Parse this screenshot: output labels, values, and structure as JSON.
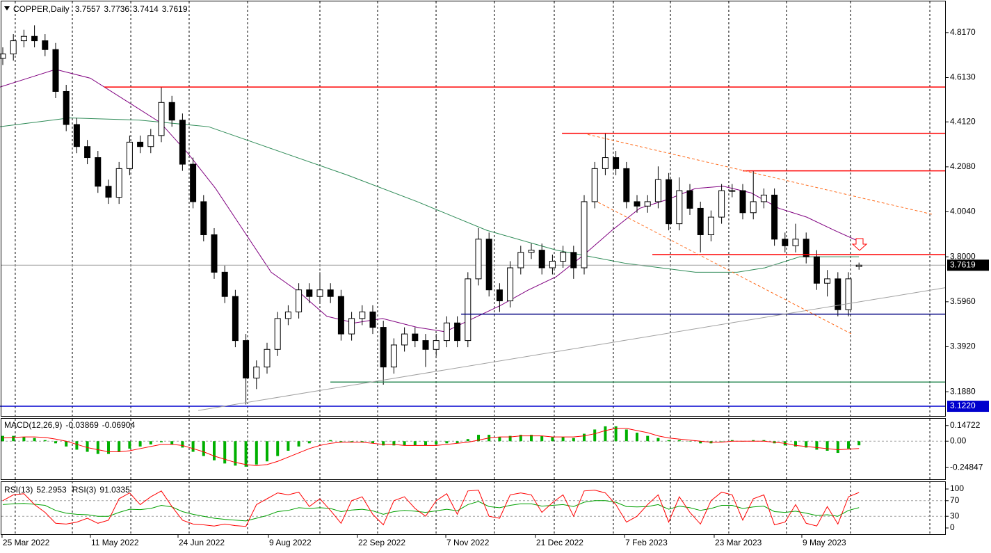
{
  "chart_data": [
    {
      "type": "candlestick",
      "title": "COPPER,Daily",
      "colors": {
        "up": "#ffffff",
        "down": "#000000",
        "outline": "#000000"
      },
      "open": [
        4.7,
        4.72,
        4.78,
        4.8,
        4.78,
        4.74,
        4.55,
        4.4,
        4.3,
        4.25,
        4.12,
        4.07,
        4.2,
        4.32,
        4.3,
        4.35,
        4.5,
        4.42,
        4.22,
        4.05,
        3.9,
        3.73,
        3.62,
        3.42,
        3.25,
        3.3,
        3.38,
        3.52,
        3.55,
        3.65,
        3.62,
        3.65,
        3.62,
        3.45,
        3.52,
        3.55,
        3.48,
        3.3,
        3.4,
        3.45,
        3.42,
        3.38,
        3.42,
        3.5,
        3.42,
        3.7,
        3.88,
        3.65,
        3.6,
        3.75,
        3.82,
        3.83,
        3.75,
        3.78,
        3.82,
        3.75,
        4.05,
        4.2,
        4.25,
        4.2,
        4.05,
        4.03,
        4.05,
        4.15,
        3.95,
        4.1,
        4.02,
        3.9,
        3.98,
        4.1,
        4.1,
        4.0,
        4.05,
        4.08,
        3.88,
        3.85,
        3.88,
        3.8,
        3.68,
        3.7,
        3.56,
        3.7557
      ],
      "high": [
        4.75,
        4.81,
        4.83,
        4.85,
        4.81,
        4.77,
        4.58,
        4.43,
        4.33,
        4.28,
        4.15,
        4.23,
        4.35,
        4.35,
        4.38,
        4.57,
        4.53,
        4.45,
        4.25,
        4.08,
        3.93,
        3.76,
        3.65,
        3.45,
        3.33,
        3.41,
        3.55,
        3.58,
        3.68,
        3.68,
        3.73,
        3.68,
        3.65,
        3.55,
        3.58,
        3.58,
        3.51,
        3.43,
        3.48,
        3.48,
        3.45,
        3.45,
        3.53,
        3.53,
        3.73,
        3.93,
        3.91,
        3.68,
        3.78,
        3.85,
        3.86,
        3.86,
        3.81,
        3.85,
        3.85,
        4.08,
        4.23,
        4.36,
        4.28,
        4.23,
        4.08,
        4.08,
        4.21,
        4.18,
        4.16,
        4.13,
        4.05,
        4.01,
        4.13,
        4.13,
        4.13,
        4.19,
        4.11,
        4.11,
        3.91,
        3.95,
        3.91,
        3.83,
        3.74,
        3.73,
        3.73,
        3.7736
      ],
      "low": [
        4.67,
        4.69,
        4.75,
        4.75,
        4.71,
        4.52,
        4.37,
        4.27,
        4.22,
        4.09,
        4.04,
        4.04,
        4.17,
        4.27,
        4.27,
        4.32,
        4.39,
        4.19,
        4.02,
        3.87,
        3.7,
        3.59,
        3.39,
        3.13,
        3.2,
        3.27,
        3.35,
        3.49,
        3.52,
        3.59,
        3.59,
        3.59,
        3.42,
        3.42,
        3.49,
        3.45,
        3.22,
        3.27,
        3.37,
        3.39,
        3.3,
        3.35,
        3.39,
        3.39,
        3.39,
        3.67,
        3.62,
        3.55,
        3.57,
        3.72,
        3.79,
        3.72,
        3.72,
        3.75,
        3.7,
        3.72,
        4.02,
        4.17,
        4.17,
        4.02,
        4.0,
        4.0,
        4.02,
        3.92,
        3.92,
        3.99,
        3.82,
        3.87,
        3.95,
        4.07,
        3.97,
        3.97,
        4.02,
        3.85,
        3.82,
        3.82,
        3.77,
        3.65,
        3.62,
        3.53,
        3.53,
        3.7414
      ],
      "close": [
        4.72,
        4.78,
        4.8,
        4.78,
        4.74,
        4.55,
        4.4,
        4.3,
        4.25,
        4.12,
        4.07,
        4.2,
        4.32,
        4.3,
        4.35,
        4.5,
        4.42,
        4.22,
        4.05,
        3.9,
        3.73,
        3.62,
        3.42,
        3.25,
        3.3,
        3.38,
        3.52,
        3.55,
        3.65,
        3.62,
        3.65,
        3.62,
        3.45,
        3.52,
        3.55,
        3.48,
        3.3,
        3.4,
        3.45,
        3.42,
        3.38,
        3.42,
        3.5,
        3.42,
        3.7,
        3.88,
        3.65,
        3.6,
        3.75,
        3.82,
        3.83,
        3.75,
        3.78,
        3.82,
        3.75,
        4.05,
        4.2,
        4.25,
        4.2,
        4.05,
        4.03,
        4.05,
        4.15,
        3.95,
        4.1,
        4.02,
        3.9,
        3.98,
        4.1,
        4.1,
        4.0,
        4.05,
        4.08,
        3.88,
        3.85,
        3.88,
        3.8,
        3.68,
        3.7,
        3.56,
        3.7,
        3.7619
      ],
      "xlim": [
        -0.263,
        89.21
      ],
      "xticks": [
        {
          "value": -0.07,
          "label": "25 Mar 2022"
        },
        {
          "value": 8.29,
          "label": "11 May 2022"
        },
        {
          "value": 16.58,
          "label": "24 Jun 2022"
        },
        {
          "value": 25.13,
          "label": "9 Aug 2022"
        },
        {
          "value": 33.55,
          "label": "22 Sep 2022"
        },
        {
          "value": 41.91,
          "label": "7 Nov 2022"
        },
        {
          "value": 50.39,
          "label": "21 Dec 2022"
        },
        {
          "value": 58.82,
          "label": "7 Feb 2023"
        },
        {
          "value": 67.3,
          "label": "23 Mar 2023"
        },
        {
          "value": 75.59,
          "label": "9 May 2023"
        }
      ],
      "xgrid": [
        1.18,
        6.58,
        12.11,
        17.63,
        23.16,
        30.0,
        35.46,
        40.99,
        46.51,
        52.17,
        57.76,
        63.16,
        68.68,
        74.14,
        80.2,
        87.7
      ],
      "ylim": [
        3.078,
        4.9585
      ],
      "yticks": [
        {
          "value": 4.817,
          "label": "4.8170"
        },
        {
          "value": 4.613,
          "label": "4.6130"
        },
        {
          "value": 4.412,
          "label": "4.4120"
        },
        {
          "value": 4.208,
          "label": "4.2080"
        },
        {
          "value": 4.004,
          "label": "4.0040"
        },
        {
          "value": 3.8,
          "label": "3.8000"
        },
        {
          "value": 3.596,
          "label": "3.5960"
        },
        {
          "value": 3.392,
          "label": "3.3920"
        },
        {
          "value": 3.188,
          "label": "3.1880"
        }
      ],
      "moving_averages": [
        {
          "color": "#800080",
          "x": [
            -0.26,
            2.37,
            5.0,
            8.29,
            12.24,
            14.87,
            17.5,
            20.13,
            22.76,
            25.39,
            28.03,
            30.66,
            33.29,
            35.92,
            39.21,
            41.84,
            44.47,
            47.11,
            49.74,
            52.37,
            55.0,
            57.63,
            60.26,
            62.9,
            65.53,
            68.16,
            70.79,
            73.42,
            76.05,
            78.68,
            80.99
          ],
          "values": [
            4.57,
            4.61,
            4.65,
            4.61,
            4.49,
            4.41,
            4.27,
            4.11,
            3.92,
            3.73,
            3.64,
            3.53,
            3.5,
            3.52,
            3.48,
            3.46,
            3.52,
            3.58,
            3.65,
            3.71,
            3.81,
            3.92,
            4.02,
            4.06,
            4.11,
            4.12,
            4.09,
            4.02,
            3.98,
            3.92,
            3.87
          ]
        },
        {
          "color": "#2e8b57",
          "x": [
            -0.26,
            6.32,
            12.89,
            19.47,
            26.05,
            32.63,
            39.21,
            45.79,
            52.37,
            58.95,
            65.53,
            69.47,
            72.1,
            75.39,
            80.99
          ],
          "values": [
            4.39,
            4.43,
            4.42,
            4.39,
            4.28,
            4.17,
            4.05,
            3.92,
            3.83,
            3.77,
            3.73,
            3.73,
            3.75,
            3.8,
            3.8
          ]
        }
      ],
      "levels": [
        {
          "value": 4.57,
          "x0": 9.6,
          "color": "#ff0000"
        },
        {
          "value": 4.36,
          "x0": 52.9,
          "color": "#ff0000"
        },
        {
          "value": 4.19,
          "x0": 70.0,
          "color": "#ff0000"
        },
        {
          "value": 3.81,
          "x0": 61.45,
          "color": "#ff0000"
        },
        {
          "value": 3.54,
          "x0": 43.36,
          "color": "#000080"
        },
        {
          "value": 3.232,
          "x0": 30.99,
          "color": "#2e8b57"
        },
        {
          "value": 3.122,
          "label": "3.1220",
          "x0": -0.263,
          "color": "#0000cd"
        }
      ],
      "trendlines": [
        {
          "x": [
            18.49,
            89.21
          ],
          "values": [
            3.103,
            3.66
          ],
          "color": "#a0a0a0",
          "dashed": false
        },
        {
          "x": [
            55.33,
            87.9
          ],
          "values": [
            4.355,
            3.993
          ],
          "color": "#ff6a1a",
          "dashed": true
        },
        {
          "x": [
            56.32,
            80.33
          ],
          "values": [
            4.047,
            3.449
          ],
          "color": "#ff6a1a",
          "dashed": true
        }
      ]
    },
    {
      "type": "macd",
      "title": "MACD(12,26,9)",
      "series": [
        {
          "color": "#00b000",
          "style": "histogram",
          "values": [
            0.05,
            0.05,
            0.04,
            0.03,
            0.01,
            -0.02,
            -0.05,
            -0.08,
            -0.1,
            -0.12,
            -0.12,
            -0.1,
            -0.07,
            -0.05,
            -0.03,
            -0.01,
            -0.03,
            -0.06,
            -0.1,
            -0.14,
            -0.18,
            -0.21,
            -0.23,
            -0.24,
            -0.22,
            -0.19,
            -0.14,
            -0.09,
            -0.05,
            -0.02,
            0.0,
            0.01,
            -0.01,
            -0.01,
            -0.01,
            -0.02,
            -0.04,
            -0.04,
            -0.04,
            -0.04,
            -0.04,
            -0.03,
            -0.02,
            -0.02,
            0.02,
            0.06,
            0.06,
            0.04,
            0.05,
            0.06,
            0.06,
            0.05,
            0.04,
            0.04,
            0.03,
            0.07,
            0.11,
            0.14,
            0.14,
            0.11,
            0.08,
            0.05,
            0.03,
            0.01,
            0.01,
            0.0,
            -0.02,
            -0.02,
            0.0,
            0.01,
            0.0,
            0.01,
            0.01,
            -0.02,
            -0.04,
            -0.05,
            -0.06,
            -0.08,
            -0.09,
            -0.11,
            -0.07,
            -0.03869
          ]
        },
        {
          "color": "#ff0000",
          "style": "line",
          "values": [
            0.03,
            0.035,
            0.04,
            0.04,
            0.035,
            0.02,
            0.0,
            -0.03,
            -0.06,
            -0.08,
            -0.1,
            -0.1,
            -0.09,
            -0.07,
            -0.05,
            -0.03,
            -0.03,
            -0.04,
            -0.07,
            -0.1,
            -0.14,
            -0.17,
            -0.2,
            -0.22,
            -0.23,
            -0.22,
            -0.19,
            -0.15,
            -0.11,
            -0.07,
            -0.04,
            -0.02,
            -0.01,
            -0.01,
            -0.01,
            -0.02,
            -0.03,
            -0.03,
            -0.04,
            -0.04,
            -0.04,
            -0.04,
            -0.03,
            -0.02,
            -0.01,
            0.01,
            0.03,
            0.04,
            0.04,
            0.05,
            0.05,
            0.05,
            0.04,
            0.04,
            0.04,
            0.05,
            0.07,
            0.1,
            0.12,
            0.12,
            0.1,
            0.08,
            0.05,
            0.03,
            0.02,
            0.01,
            0.0,
            -0.01,
            -0.01,
            0.0,
            0.0,
            0.0,
            0.0,
            -0.01,
            -0.02,
            -0.04,
            -0.05,
            -0.06,
            -0.07,
            -0.08,
            -0.075,
            -0.06904
          ]
        }
      ],
      "ylim": [
        -0.3585,
        0.2112
      ],
      "yticks": [
        0.14722,
        {
          "value": 0,
          "label": "0.00"
        },
        -0.24847
      ],
      "ygrid": [
        0
      ]
    },
    {
      "type": "line",
      "series": [
        {
          "name": "RSI(13)",
          "color": "#00a000",
          "values": [
            60,
            62,
            63,
            61,
            58,
            45,
            38,
            35,
            34,
            30,
            30,
            40,
            48,
            47,
            50,
            58,
            54,
            42,
            35,
            30,
            25,
            22,
            20,
            18,
            25,
            32,
            42,
            45,
            52,
            50,
            52,
            50,
            42,
            46,
            48,
            44,
            35,
            42,
            45,
            43,
            40,
            44,
            48,
            44,
            60,
            68,
            55,
            52,
            58,
            62,
            62,
            56,
            58,
            60,
            55,
            66,
            70,
            70,
            66,
            55,
            54,
            55,
            60,
            48,
            56,
            52,
            45,
            50,
            58,
            58,
            50,
            54,
            56,
            42,
            40,
            43,
            38,
            32,
            34,
            30,
            45,
            52.2953
          ]
        },
        {
          "name": "RSI(3)",
          "color": "#ff0000",
          "values": [
            70,
            85,
            88,
            60,
            40,
            12,
            10,
            15,
            25,
            12,
            20,
            75,
            90,
            60,
            80,
            95,
            55,
            20,
            10,
            8,
            5,
            10,
            6,
            4,
            60,
            75,
            90,
            85,
            92,
            55,
            75,
            45,
            12,
            70,
            80,
            35,
            8,
            70,
            80,
            50,
            30,
            70,
            88,
            35,
            95,
            97,
            30,
            25,
            85,
            90,
            85,
            40,
            65,
            85,
            30,
            95,
            97,
            90,
            60,
            15,
            30,
            60,
            85,
            15,
            80,
            40,
            10,
            70,
            92,
            85,
            20,
            75,
            85,
            8,
            15,
            60,
            12,
            5,
            55,
            10,
            80,
            91.0335
          ]
        }
      ],
      "ylim": [
        -16.07,
        117.86
      ],
      "yticks": [
        100,
        70,
        30,
        0
      ],
      "ygrid": [
        70,
        30
      ]
    }
  ]
}
